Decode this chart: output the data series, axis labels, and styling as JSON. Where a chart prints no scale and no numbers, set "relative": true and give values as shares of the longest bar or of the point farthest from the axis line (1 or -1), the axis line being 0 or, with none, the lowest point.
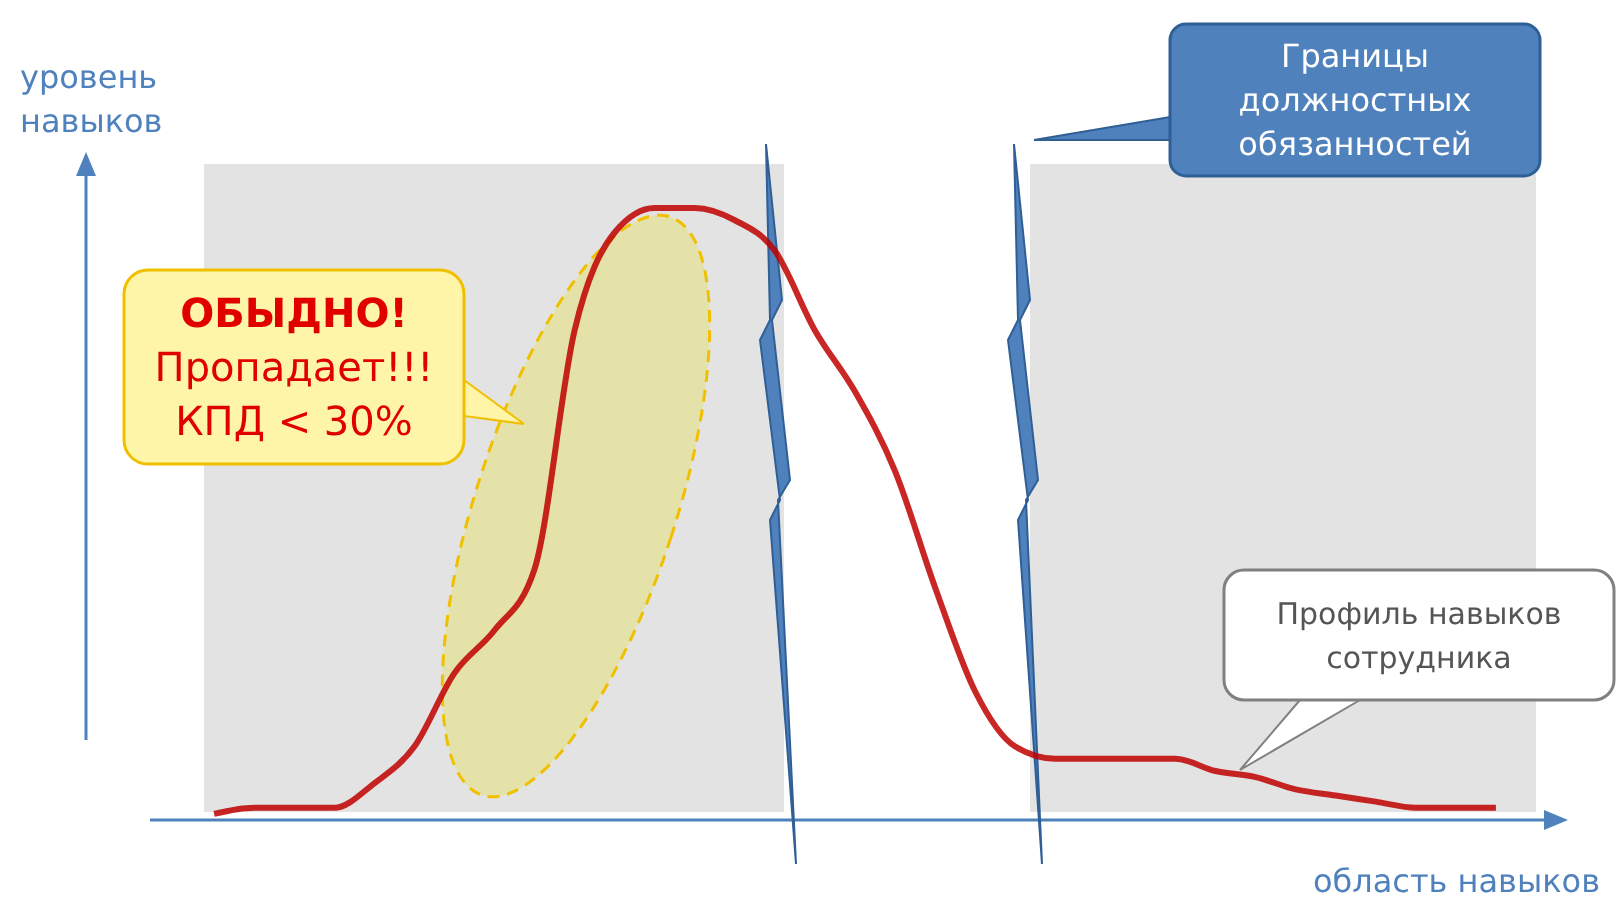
{
  "chart_data": {
    "type": "line",
    "relative": true,
    "xlabel": "область навыков",
    "ylabel": "уровень\nнавыков",
    "categories": [
      null,
      null,
      null,
      null,
      null,
      null,
      null,
      null,
      null,
      null,
      null,
      null,
      null,
      null,
      null,
      null,
      null,
      null,
      null,
      null,
      null,
      null,
      null,
      null,
      null,
      null,
      null,
      null,
      null,
      null,
      null,
      null,
      null
    ],
    "series": [
      {
        "color": "#c00000",
        "values": [
          0.01,
          0.02,
          0.02,
          0.02,
          0.06,
          0.12,
          0.24,
          0.31,
          0.41,
          0.8,
          0.96,
          1,
          1,
          0.98,
          0.93,
          0.8,
          0.7,
          0.57,
          0.38,
          0.21,
          0.12,
          0.1,
          0.1,
          0.1,
          0.1,
          0.08,
          0.07,
          0.05,
          0.04,
          0.03,
          0.02,
          0.02,
          0.02
        ]
      }
    ],
    "annotations": [
      "Границы\nдолжностных\nобязанностей",
      "ОБЫДНО!\nПропадает!!!\nКПД < 30%",
      "Профиль навыков\nсотрудника"
    ]
  }
}
